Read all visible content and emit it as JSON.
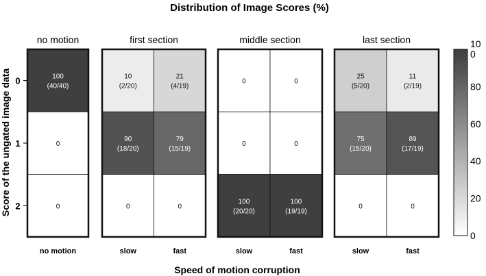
{
  "chart_data": {
    "type": "heatmap",
    "title": "Distribution of Image Scores (%)",
    "xlabel": "Speed of motion corruption",
    "ylabel": "Score of the ungated image data",
    "groups": [
      {
        "label": "no motion",
        "columns": [
          "no motion"
        ]
      },
      {
        "label": "first section",
        "columns": [
          "slow",
          "fast"
        ]
      },
      {
        "label": "middle section",
        "columns": [
          "slow",
          "fast"
        ]
      },
      {
        "label": "last section",
        "columns": [
          "slow",
          "fast"
        ]
      }
    ],
    "rows": [
      "0",
      "1",
      "2"
    ],
    "values": [
      [
        100,
        10,
        21,
        0,
        0,
        25,
        11
      ],
      [
        0,
        90,
        79,
        0,
        0,
        75,
        89
      ],
      [
        0,
        0,
        0,
        100,
        100,
        0,
        0
      ]
    ],
    "cell_labels": [
      [
        [
          "100",
          "(40/40)"
        ],
        [
          "10",
          "(2/20)"
        ],
        [
          "21",
          "(4/19)"
        ],
        [
          "0",
          ""
        ],
        [
          "0",
          ""
        ],
        [
          "25",
          "(5/20)"
        ],
        [
          "11",
          "(2/19)"
        ]
      ],
      [
        [
          "0",
          ""
        ],
        [
          "90",
          "(18/20)"
        ],
        [
          "79",
          "(15/19)"
        ],
        [
          "0",
          ""
        ],
        [
          "0",
          ""
        ],
        [
          "75",
          "(15/20)"
        ],
        [
          "89",
          "(17/19)"
        ]
      ],
      [
        [
          "0",
          ""
        ],
        [
          "0",
          ""
        ],
        [
          "0",
          ""
        ],
        [
          "100",
          "(20/20)"
        ],
        [
          "100",
          "(19/19)"
        ],
        [
          "0",
          ""
        ],
        [
          "0",
          ""
        ]
      ]
    ],
    "colorbar": {
      "range": [
        0,
        100
      ],
      "ticks": [
        "0",
        "20",
        "40",
        "60",
        "80",
        "10\n0"
      ],
      "colors": {
        "low": "#ffffff",
        "high": "#3f3f3f"
      }
    }
  }
}
